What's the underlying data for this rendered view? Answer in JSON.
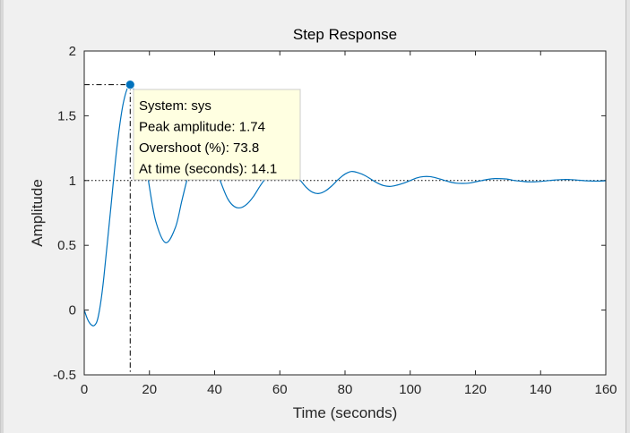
{
  "chart_data": {
    "type": "line",
    "title": "Step Response",
    "xlabel": "Time (seconds)",
    "ylabel": "Amplitude",
    "xlim": [
      0,
      160
    ],
    "ylim": [
      -0.5,
      2
    ],
    "x_ticks": [
      "0",
      "20",
      "40",
      "60",
      "80",
      "100",
      "120",
      "140",
      "160"
    ],
    "y_ticks": [
      "-0.5",
      "0",
      "0.5",
      "1",
      "1.5",
      "2"
    ],
    "x_tick_values": [
      0,
      20,
      40,
      60,
      80,
      100,
      120,
      140,
      160
    ],
    "y_tick_values": [
      -0.5,
      0,
      0.5,
      1,
      1.5,
      2
    ],
    "grid": false,
    "steady_state": 1,
    "series": [
      {
        "color": "#0072bd",
        "x": [
          0,
          1,
          2,
          3,
          4,
          5,
          6,
          8,
          10,
          12,
          14.1,
          16,
          18,
          20,
          22,
          25,
          28,
          30,
          32,
          34,
          36,
          38,
          40,
          42,
          44,
          46,
          48,
          50,
          52,
          54,
          56,
          58,
          60,
          62,
          64,
          66,
          68,
          70,
          72,
          74,
          76,
          78,
          80,
          82,
          84,
          86,
          88,
          90,
          92,
          94,
          96,
          98,
          100,
          102,
          104,
          106,
          108,
          110,
          112,
          114,
          116,
          118,
          120,
          122,
          124,
          126,
          128,
          130,
          132,
          134,
          136,
          138,
          140,
          142,
          144,
          146,
          148,
          150,
          152,
          154,
          156,
          158,
          160
        ],
        "y": [
          0,
          -0.07,
          -0.11,
          -0.12,
          -0.08,
          0.05,
          0.25,
          0.75,
          1.25,
          1.6,
          1.74,
          1.62,
          1.3,
          0.95,
          0.68,
          0.52,
          0.64,
          0.85,
          1.05,
          1.2,
          1.26,
          1.22,
          1.12,
          0.98,
          0.86,
          0.8,
          0.79,
          0.82,
          0.88,
          0.96,
          1.03,
          1.08,
          1.11,
          1.1,
          1.06,
          1.01,
          0.95,
          0.91,
          0.9,
          0.92,
          0.96,
          1.01,
          1.05,
          1.07,
          1.06,
          1.04,
          1.01,
          0.98,
          0.96,
          0.955,
          0.965,
          0.98,
          1.0,
          1.02,
          1.03,
          1.03,
          1.02,
          1.005,
          0.99,
          0.98,
          0.978,
          0.98,
          0.99,
          1.0,
          1.01,
          1.015,
          1.014,
          1.01,
          1.0,
          0.995,
          0.99,
          0.99,
          0.993,
          0.998,
          1.003,
          1.007,
          1.008,
          1.006,
          1.002,
          0.998,
          0.996,
          0.996,
          0.998
        ]
      }
    ],
    "datatip": {
      "x": 14.1,
      "y": 1.74,
      "lines": [
        "System: sys",
        "Peak amplitude: 1.74",
        "Overshoot (%): 73.8",
        "At time (seconds): 14.1"
      ]
    }
  }
}
